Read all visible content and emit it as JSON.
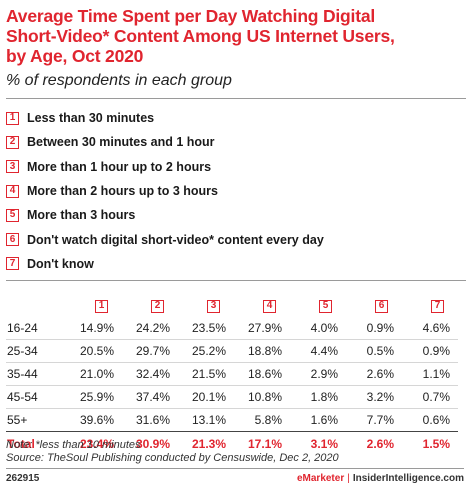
{
  "header": {
    "title_lines": [
      "Average Time Spent per Day Watching Digital",
      "Short-Video* Content Among US Internet Users,",
      "by Age, Oct 2020"
    ],
    "subtitle": "% of respondents in each group"
  },
  "legend": [
    {
      "num": "1",
      "label": "Less than 30 minutes"
    },
    {
      "num": "2",
      "label": "Between 30 minutes and 1 hour"
    },
    {
      "num": "3",
      "label": "More than 1 hour up to 2 hours"
    },
    {
      "num": "4",
      "label": "More than 2 hours up to 3 hours"
    },
    {
      "num": "5",
      "label": "More than 3 hours"
    },
    {
      "num": "6",
      "label": "Don't watch digital short-video* content every day"
    },
    {
      "num": "7",
      "label": "Don't know"
    }
  ],
  "chart_data": {
    "type": "table",
    "columns": [
      "1",
      "2",
      "3",
      "4",
      "5",
      "6",
      "7"
    ],
    "rows": [
      {
        "label": "16-24",
        "values": [
          "14.9%",
          "24.2%",
          "23.5%",
          "27.9%",
          "4.0%",
          "0.9%",
          "4.6%"
        ]
      },
      {
        "label": "25-34",
        "values": [
          "20.5%",
          "29.7%",
          "25.2%",
          "18.8%",
          "4.4%",
          "0.5%",
          "0.9%"
        ]
      },
      {
        "label": "35-44",
        "values": [
          "21.0%",
          "32.4%",
          "21.5%",
          "18.6%",
          "2.9%",
          "2.6%",
          "1.1%"
        ]
      },
      {
        "label": "45-54",
        "values": [
          "25.9%",
          "37.4%",
          "20.1%",
          "10.8%",
          "1.8%",
          "3.2%",
          "0.7%"
        ]
      },
      {
        "label": "55+",
        "values": [
          "39.6%",
          "31.6%",
          "13.1%",
          "5.8%",
          "1.6%",
          "7.7%",
          "0.6%"
        ]
      },
      {
        "label": "Total",
        "values": [
          "23.4%",
          "30.9%",
          "21.3%",
          "17.1%",
          "3.1%",
          "2.6%",
          "1.5%"
        ]
      }
    ]
  },
  "notes": {
    "line1": "Note: *less than 10 minutes",
    "line2": "Source: TheSoul Publishing conducted by Censuswide, Dec 2, 2020"
  },
  "footer": {
    "id": "262915",
    "brand_left": "eMarketer",
    "separator": "|",
    "brand_right": "InsiderIntelligence.com"
  },
  "colors": {
    "accent": "#e0252f"
  }
}
